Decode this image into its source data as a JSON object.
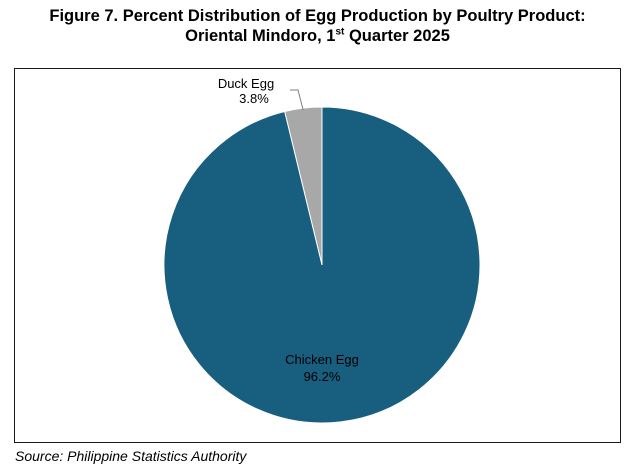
{
  "title": {
    "line1": "Figure 7. Percent Distribution of Egg Production by Poultry Product:",
    "line2_main": "Oriental Mindoro, 1",
    "line2_sup": "st",
    "line2_end": " Quarter 2025"
  },
  "source": "Source: Philippine Statistics Authority",
  "colors": {
    "chicken": "#175e7f",
    "duck": "#a8a8a8",
    "slice_border": "#ffffff",
    "leader": "#7f7f7f"
  },
  "chart_data": {
    "type": "pie",
    "title": "Figure 7. Percent Distribution of Egg Production by Poultry Product: Oriental Mindoro, 1st Quarter 2025",
    "slices": [
      {
        "name": "Duck Egg",
        "value": 3.8,
        "label": "3.8%"
      },
      {
        "name": "Chicken Egg",
        "value": 96.2,
        "label": "96.2%"
      }
    ]
  }
}
